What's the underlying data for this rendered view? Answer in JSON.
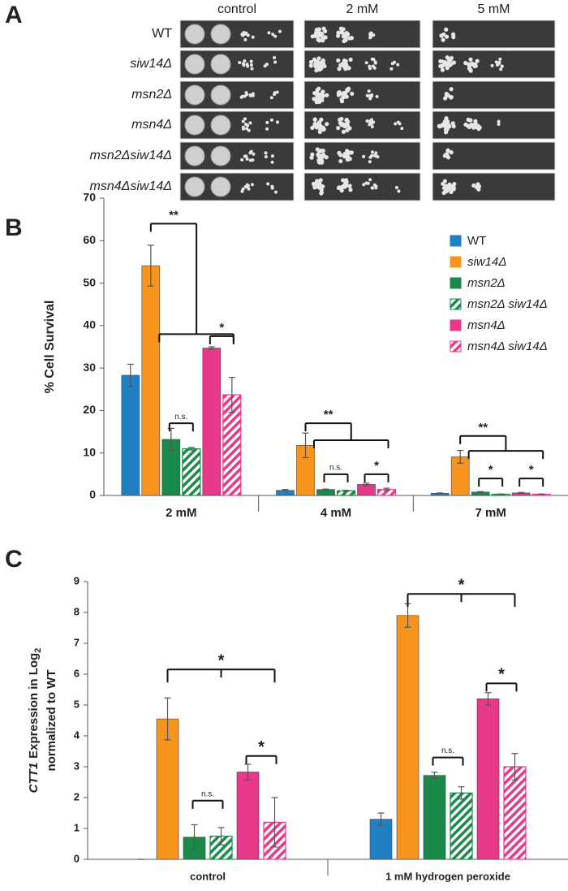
{
  "panels": [
    "A",
    "B",
    "C"
  ],
  "spot_assay": {
    "columns": [
      "control",
      "2 mM",
      "5 mM"
    ],
    "rows": [
      "WT",
      "siw14Δ",
      "msn2Δ",
      "msn4Δ",
      "msn2Δsiw14Δ",
      "msn4Δsiw14Δ"
    ]
  },
  "chart_data": [
    {
      "type": "bar",
      "ylabel": "% Cell Survival",
      "categories": [
        "2 mM",
        "4 mM",
        "7 mM"
      ],
      "ylim": [
        0,
        70
      ],
      "yticks": [
        0,
        10,
        20,
        30,
        40,
        50,
        60,
        70
      ],
      "legend": "upper right",
      "series": [
        {
          "name": "WT",
          "color": "#1f80c4",
          "hatch": false,
          "values": [
            28.3,
            1.2,
            0.5
          ],
          "errors": [
            2.6,
            0.2,
            0.1
          ]
        },
        {
          "name": "siw14Δ",
          "color": "#f7941d",
          "hatch": false,
          "values": [
            54.1,
            11.8,
            9.1
          ],
          "errors": [
            4.8,
            2.9,
            1.5
          ]
        },
        {
          "name": "msn2Δ",
          "color": "#1a8a4a",
          "hatch": false,
          "values": [
            13.2,
            1.4,
            0.8
          ],
          "errors": [
            2.6,
            0.1,
            0.1
          ]
        },
        {
          "name": "msn2Δ siw14Δ",
          "color": "#1a8a4a",
          "hatch": true,
          "values": [
            11.0,
            1.1,
            0.3
          ],
          "errors": [
            0.3,
            0.1,
            0.05
          ]
        },
        {
          "name": "msn4Δ",
          "color": "#e8388a",
          "hatch": false,
          "values": [
            34.7,
            2.6,
            0.6
          ],
          "errors": [
            0.3,
            0.3,
            0.1
          ]
        },
        {
          "name": "msn4Δ siw14Δ",
          "color": "#e8388a",
          "hatch": true,
          "values": [
            23.7,
            1.4,
            0.3
          ],
          "errors": [
            4.1,
            0.3,
            0.05
          ]
        }
      ],
      "annotations": [
        "**",
        "n.s.",
        "*",
        "**",
        "n.s.",
        "*",
        "**",
        "*",
        "*"
      ]
    },
    {
      "type": "bar",
      "ylabel": {
        "gene": "CTT1",
        "text": "Expression in Log",
        "subscript": "2",
        "line2": "normalized to WT"
      },
      "categories": [
        "control",
        "1 mM hydrogen peroxide"
      ],
      "ylim": [
        0,
        9
      ],
      "yticks": [
        0,
        1,
        2,
        3,
        4,
        5,
        6,
        7,
        8,
        9
      ],
      "series": [
        {
          "color": "#1f80c4",
          "hatch": false,
          "values": [
            0,
            1.3
          ],
          "errors": [
            0,
            0.2
          ]
        },
        {
          "color": "#f7941d",
          "hatch": false,
          "values": [
            4.55,
            7.9
          ],
          "errors": [
            0.68,
            0.38
          ]
        },
        {
          "color": "#1a8a4a",
          "hatch": false,
          "values": [
            0.72,
            2.72
          ],
          "errors": [
            0.4,
            0.1
          ]
        },
        {
          "color": "#1a8a4a",
          "hatch": true,
          "values": [
            0.75,
            2.15
          ],
          "errors": [
            0.28,
            0.2
          ]
        },
        {
          "color": "#e8388a",
          "hatch": false,
          "values": [
            2.83,
            5.2
          ],
          "errors": [
            0.25,
            0.2
          ]
        },
        {
          "color": "#e8388a",
          "hatch": true,
          "values": [
            1.2,
            3.0
          ],
          "errors": [
            0.8,
            0.43
          ]
        }
      ],
      "annotations": [
        "*",
        "n.s.",
        "*",
        "*",
        "n.s.",
        "*"
      ]
    }
  ]
}
